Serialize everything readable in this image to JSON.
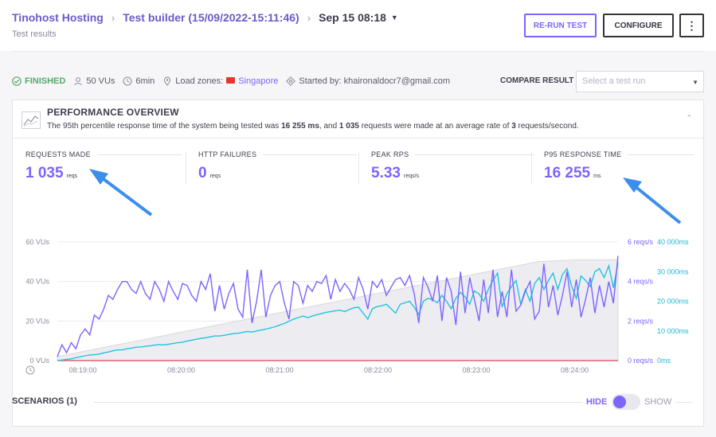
{
  "header": {
    "breadcrumbs": [
      "Tinohost Hosting",
      "Test builder (15/09/2022-15:11:46)"
    ],
    "run_label": "Sep 15 08:18",
    "subtitle": "Test results",
    "buttons": {
      "rerun": "RE-RUN TEST",
      "configure": "CONFIGURE",
      "more": "⋮"
    }
  },
  "meta": {
    "status": "FINISHED",
    "vus": "50 VUs",
    "duration": "6min",
    "load_zones_label": "Load zones:",
    "load_zone": "Singapore",
    "started_by": "Started by: khaironaldocr7@gmail.com"
  },
  "compare": {
    "label": "COMPARE RESULT",
    "placeholder": "Select a test run"
  },
  "overview": {
    "title": "PERFORMANCE OVERVIEW",
    "desc_1": "The 95th percentile response time of the system being tested was ",
    "desc_p95": "16 255 ms",
    "desc_2": ", and ",
    "desc_requests": "1 035",
    "desc_3": " requests were made at an average rate of ",
    "desc_rate": "3",
    "desc_4": " requests/second."
  },
  "stats": [
    {
      "label": "REQUESTS MADE",
      "value": "1 035",
      "unit": "reqs"
    },
    {
      "label": "HTTP FAILURES",
      "value": "0",
      "unit": "reqs"
    },
    {
      "label": "PEAK RPS",
      "value": "5.33",
      "unit": "reqs/s"
    },
    {
      "label": "P95 RESPONSE TIME",
      "value": "16 255",
      "unit": "ms"
    }
  ],
  "chart_data": {
    "type": "line",
    "x_ticks": [
      "08:19:00",
      "08:20:00",
      "08:21:00",
      "08:22:00",
      "08:23:00",
      "08:24:00"
    ],
    "y_left_ticks": [
      "0 VUs",
      "20 VUs",
      "40 VUs",
      "60 VUs"
    ],
    "y_left_range": [
      0,
      60
    ],
    "y_rps_ticks": [
      "0 reqs/s",
      "2 reqs/s",
      "4 reqs/s",
      "6 reqs/s"
    ],
    "y_rps_range": [
      0,
      6
    ],
    "y_ms_ticks": [
      "0ms",
      "10 000ms",
      "20 000ms",
      "30 000ms",
      "40 000ms"
    ],
    "y_ms_range": [
      0,
      40000
    ],
    "colors": {
      "vus": "#c9c9d2",
      "rps": "#7d64ff",
      "response_time": "#22c3e0",
      "failures": "#e0405a"
    },
    "series": [
      {
        "name": "VUs",
        "values": [
          2,
          6,
          10,
          14,
          18,
          22,
          26,
          30,
          34,
          38,
          42,
          46,
          50,
          51,
          51
        ]
      },
      {
        "name": "reqs/s",
        "values": [
          0.2,
          0.8,
          0.4,
          0.9,
          0.6,
          1.3,
          1.6,
          1.3,
          2.3,
          2.1,
          2.6,
          3.3,
          3.1,
          3.6,
          4,
          4,
          3.6,
          3.4,
          4,
          3.4,
          3.1,
          4,
          3.6,
          3,
          4,
          3.5,
          3.1,
          3.9,
          3.8,
          3.3,
          3,
          4,
          3.6,
          4.4,
          2.5,
          3.8,
          2.6,
          3.4,
          3.9,
          2.6,
          2.2,
          4.6,
          1.9,
          3,
          4.6,
          2.2,
          3.3,
          3.8,
          4,
          2.9,
          2.1,
          4,
          3.8,
          2.9,
          3.8,
          3.5,
          4,
          3.9,
          4.3,
          3.1,
          4.1,
          3.5,
          3.9,
          3.6,
          3.1,
          4.2,
          3.6,
          2.6,
          4,
          3.7,
          4.1,
          3.3,
          3.7,
          4.1,
          4.2,
          3.8,
          4.3,
          3.4,
          1.9,
          4.2,
          3.7,
          3,
          4.3,
          2,
          4.2,
          3.5,
          1.8,
          4.5,
          2.4,
          4.2,
          3.1,
          2,
          4.1,
          2.4,
          4.6,
          2.2,
          3.5,
          2.2,
          4.6,
          2.5,
          2.8,
          3.5,
          4,
          2.1,
          2.5,
          4.9,
          2.7,
          3.8,
          2.3,
          3.3,
          4.5,
          2.7,
          4.1,
          2.2,
          3.1,
          4.2,
          2.4,
          3.8,
          2.7,
          4,
          2.9,
          5.3
        ]
      },
      {
        "name": "response time (ms)",
        "values": [
          0,
          200,
          400,
          600,
          1000,
          1300,
          1600,
          1900,
          2000,
          2200,
          2600,
          2900,
          3300,
          3600,
          3600,
          4000,
          4200,
          4500,
          4600,
          4800,
          5000,
          5200,
          5400,
          5300,
          5500,
          5800,
          6000,
          6200,
          6600,
          6900,
          7200,
          7500,
          7700,
          8000,
          8300,
          8300,
          8500,
          8800,
          9100,
          9200,
          9500,
          9800,
          9600,
          10000,
          10300,
          10600,
          11000,
          11400,
          12000,
          12500,
          13300,
          14000,
          14500,
          15000,
          14500,
          15000,
          15500,
          15800,
          16300,
          16500,
          16800,
          17000,
          16500,
          17200,
          17800,
          18000,
          16000,
          14000,
          17500,
          18200,
          18500,
          19000,
          17500,
          16000,
          19000,
          19500,
          20000,
          18000,
          15500,
          20000,
          21000,
          20500,
          19500,
          22000,
          20000,
          17500,
          21000,
          23000,
          21500,
          19000,
          23500,
          22500,
          20000,
          24000,
          27000,
          29500,
          18000,
          22500,
          25000,
          27000,
          19000,
          24000,
          20000,
          26000,
          28000,
          24000,
          27000,
          29500,
          24000,
          29000,
          31000,
          25000,
          21000,
          28500,
          27000,
          25000,
          30000,
          31000,
          28000,
          32000,
          24500,
          33000
        ]
      },
      {
        "name": "HTTP failures",
        "values": [
          0,
          0,
          0,
          0,
          0,
          0,
          0,
          0,
          0,
          0,
          0,
          0,
          0,
          0,
          0,
          0
        ]
      }
    ]
  },
  "scenarios": {
    "title": "SCENARIOS (1)",
    "hide": "HIDE",
    "show": "SHOW"
  }
}
